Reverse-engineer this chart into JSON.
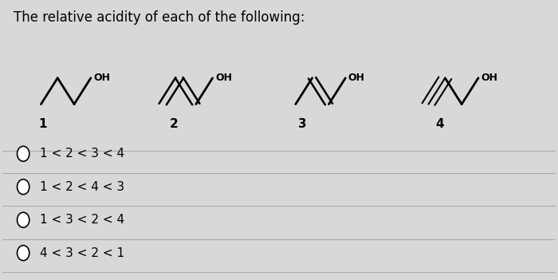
{
  "title": "The relative acidity of each of the following:",
  "title_fontsize": 12,
  "background_color": "#d8d8d8",
  "text_color": "#000000",
  "options": [
    "1 < 2 < 3 < 4",
    "1 < 2 < 4 < 3",
    "1 < 3 < 2 < 4",
    "4 < 3 < 2 < 1"
  ],
  "compound_labels": [
    "1",
    "2",
    "3",
    "4"
  ]
}
